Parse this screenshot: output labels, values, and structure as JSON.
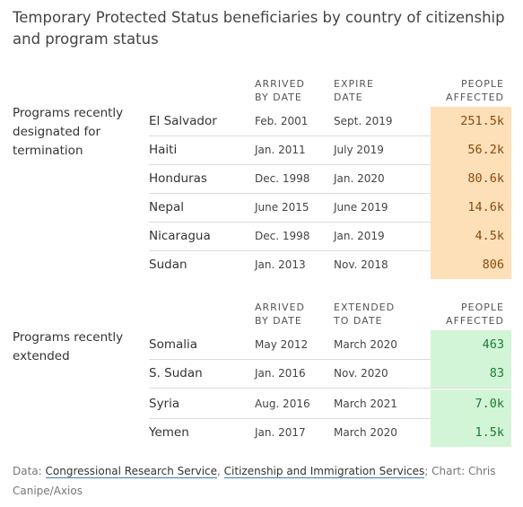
{
  "title": "Temporary Protected Status beneficiaries by country of citizenship and program status",
  "colors": {
    "termination_fill": "#fde0b8",
    "termination_text": "#8a4a10",
    "extended_fill": "#d3f5d7",
    "extended_text": "#1e7a34"
  },
  "chart_data": {
    "type": "table",
    "title": "Temporary Protected Status beneficiaries by country of citizenship and program status",
    "sections": [
      {
        "label": "Programs recently designated for termination",
        "headers": {
          "arrived_1": "ARRIVED",
          "arrived_2": "BY DATE",
          "date_1": "EXPIRE",
          "date_2": "DATE",
          "people_1": "PEOPLE",
          "people_2": "AFFECTED"
        },
        "rows": [
          {
            "country": "El Salvador",
            "arrived": "Feb. 2001",
            "date": "Sept. 2019",
            "people": "251.5k"
          },
          {
            "country": "Haiti",
            "arrived": "Jan. 2011",
            "date": "July 2019",
            "people": "56.2k"
          },
          {
            "country": "Honduras",
            "arrived": "Dec. 1998",
            "date": "Jan. 2020",
            "people": "80.6k"
          },
          {
            "country": "Nepal",
            "arrived": "June 2015",
            "date": "June 2019",
            "people": "14.6k"
          },
          {
            "country": "Nicaragua",
            "arrived": "Dec. 1998",
            "date": "Jan. 2019",
            "people": "4.5k"
          },
          {
            "country": "Sudan",
            "arrived": "Jan. 2013",
            "date": "Nov. 2018",
            "people": "806"
          }
        ]
      },
      {
        "label": "Programs recently extended",
        "headers": {
          "arrived_1": "ARRIVED",
          "arrived_2": "BY DATE",
          "date_1": "EXTENDED",
          "date_2": "TO DATE",
          "people_1": "PEOPLE",
          "people_2": "AFFECTED"
        },
        "rows": [
          {
            "country": "Somalia",
            "arrived": "May 2012",
            "date": "March 2020",
            "people": "463"
          },
          {
            "country": "S. Sudan",
            "arrived": "Jan. 2016",
            "date": "Nov. 2020",
            "people": "83"
          },
          {
            "country": "Syria",
            "arrived": "Aug. 2016",
            "date": "March 2021",
            "people": "7.0k"
          },
          {
            "country": "Yemen",
            "arrived": "Jan. 2017",
            "date": "March 2020",
            "people": "1.5k"
          }
        ]
      }
    ]
  },
  "footer": {
    "data_prefix": "Data: ",
    "source_1": "Congressional Research Service",
    "sep_1": ", ",
    "source_2": "Citizenship and Immigration Services",
    "suffix": "; Chart: Chris Canipe/Axios"
  }
}
